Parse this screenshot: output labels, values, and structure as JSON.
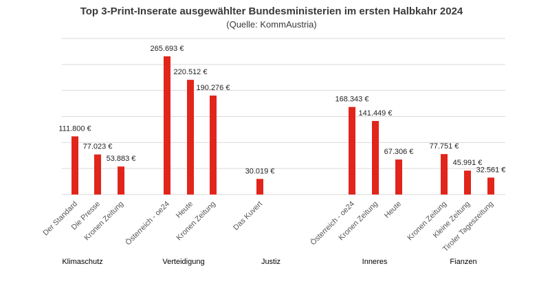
{
  "chart_data": {
    "type": "bar",
    "title": "Top 3-Print-Inserate ausgewählter Bundesministerien im ersten Halbkahr 2024",
    "subtitle": "(Quelle: KommAustria)",
    "xlabel": "",
    "ylabel": "",
    "ylim": [
      0,
      300000
    ],
    "grid": true,
    "legend": "none",
    "bar_color": "#e1251b",
    "groups": [
      {
        "name": "Klimaschutz",
        "bars": [
          {
            "category": "Der Standard",
            "value": 111800,
            "label": "111.800 €"
          },
          {
            "category": "Die Presse",
            "value": 77023,
            "label": "77.023 €"
          },
          {
            "category": "Kronen Zeitung",
            "value": 53883,
            "label": "53.883 €"
          }
        ]
      },
      {
        "name": "Verteidigung",
        "bars": [
          {
            "category": "Österreich - oe24",
            "value": 265693,
            "label": "265.693 €"
          },
          {
            "category": "Heute",
            "value": 220512,
            "label": "220.512 €"
          },
          {
            "category": "Kronen Zeitung",
            "value": 190276,
            "label": "190.276 €"
          }
        ]
      },
      {
        "name": "Justiz",
        "bars": [
          {
            "category": "Das Kuvert",
            "value": 30019,
            "label": "30.019 €"
          }
        ]
      },
      {
        "name": "Inneres",
        "bars": [
          {
            "category": "Österreich - oe24",
            "value": 168343,
            "label": "168.343 €"
          },
          {
            "category": "Kronen Zeitung",
            "value": 141449,
            "label": "141.449 €"
          },
          {
            "category": "Heute",
            "value": 67306,
            "label": "67.306 €"
          }
        ]
      },
      {
        "name": "Fianzen",
        "bars": [
          {
            "category": "Kronen Zeitung",
            "value": 77751,
            "label": "77.751 €"
          },
          {
            "category": "Kleine Zeitung",
            "value": 45991,
            "label": "45.991 €"
          },
          {
            "category": "Tiroler Tageszeitung",
            "value": 32561,
            "label": "32.561 €"
          }
        ]
      }
    ]
  }
}
